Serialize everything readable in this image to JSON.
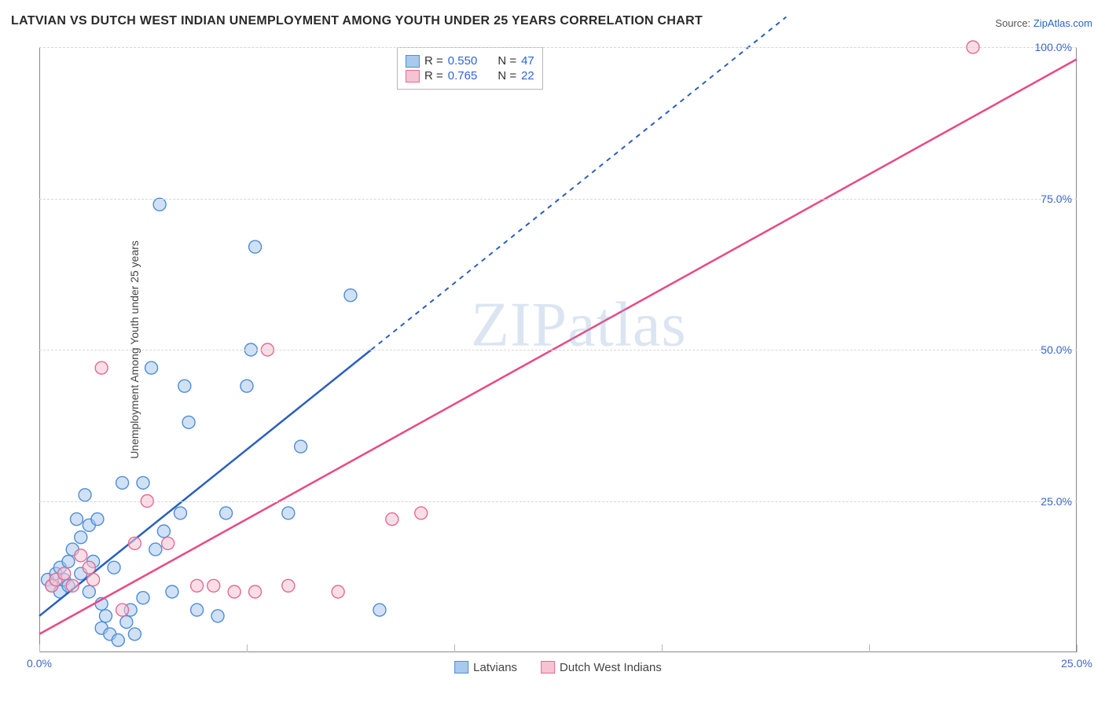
{
  "title": "LATVIAN VS DUTCH WEST INDIAN UNEMPLOYMENT AMONG YOUTH UNDER 25 YEARS CORRELATION CHART",
  "source_label": "Source:",
  "source_name": "ZipAtlas.com",
  "ylabel": "Unemployment Among Youth under 25 years",
  "watermark_part1": "ZIP",
  "watermark_part2": "atlas",
  "chart": {
    "type": "scatter",
    "background": "#ffffff",
    "grid_color": "#d6d6d6",
    "axis_color": "#888888",
    "tick_color": "#3a67c9",
    "xlim": [
      0,
      25
    ],
    "ylim": [
      0,
      100
    ],
    "x_ticks": [
      0,
      5,
      10,
      15,
      20,
      25
    ],
    "x_tick_labels": [
      "0.0%",
      "",
      "",
      "",
      "",
      "25.0%"
    ],
    "y_ticks": [
      25,
      50,
      75,
      100
    ],
    "y_tick_labels": [
      "25.0%",
      "50.0%",
      "75.0%",
      "100.0%"
    ],
    "marker_radius": 8,
    "marker_opacity": 0.55,
    "line_width_solid": 2.5,
    "line_width_dashed": 2,
    "series": [
      {
        "key": "latvians",
        "label": "Latvians",
        "fill": "#a9c9ee",
        "stroke": "#4f8dd6",
        "line_color": "#2a5fc0",
        "R": "0.550",
        "N": "47",
        "trend": {
          "slope": 5.5,
          "intercept": 6,
          "x_solid_max": 8,
          "x_dash_max": 18
        },
        "points": [
          [
            0.2,
            12
          ],
          [
            0.3,
            11
          ],
          [
            0.4,
            13
          ],
          [
            0.5,
            10
          ],
          [
            0.5,
            14
          ],
          [
            0.6,
            12
          ],
          [
            0.7,
            15
          ],
          [
            0.7,
            11
          ],
          [
            0.8,
            17
          ],
          [
            0.9,
            22
          ],
          [
            1.0,
            13
          ],
          [
            1.0,
            19
          ],
          [
            1.1,
            26
          ],
          [
            1.2,
            10
          ],
          [
            1.2,
            21
          ],
          [
            1.3,
            15
          ],
          [
            1.4,
            22
          ],
          [
            1.5,
            4
          ],
          [
            1.5,
            8
          ],
          [
            1.6,
            6
          ],
          [
            1.7,
            3
          ],
          [
            1.8,
            14
          ],
          [
            1.9,
            2
          ],
          [
            2.0,
            28
          ],
          [
            2.1,
            5
          ],
          [
            2.2,
            7
          ],
          [
            2.3,
            3
          ],
          [
            2.5,
            28
          ],
          [
            2.5,
            9
          ],
          [
            2.7,
            47
          ],
          [
            2.8,
            17
          ],
          [
            2.9,
            74
          ],
          [
            3.0,
            20
          ],
          [
            3.2,
            10
          ],
          [
            3.4,
            23
          ],
          [
            3.5,
            44
          ],
          [
            3.6,
            38
          ],
          [
            3.8,
            7
          ],
          [
            4.3,
            6
          ],
          [
            4.5,
            23
          ],
          [
            5.0,
            44
          ],
          [
            5.2,
            67
          ],
          [
            5.1,
            50
          ],
          [
            6.0,
            23
          ],
          [
            6.3,
            34
          ],
          [
            7.5,
            59
          ],
          [
            8.2,
            7
          ]
        ]
      },
      {
        "key": "dutch",
        "label": "Dutch West Indians",
        "fill": "#f6c3d2",
        "stroke": "#e56a93",
        "line_color": "#e84a84",
        "R": "0.765",
        "N": "22",
        "trend": {
          "slope": 3.8,
          "intercept": 3,
          "x_solid_max": 25,
          "x_dash_max": 25
        },
        "points": [
          [
            0.3,
            11
          ],
          [
            0.4,
            12
          ],
          [
            0.6,
            13
          ],
          [
            0.8,
            11
          ],
          [
            1.0,
            16
          ],
          [
            1.2,
            14
          ],
          [
            1.3,
            12
          ],
          [
            1.5,
            47
          ],
          [
            2.0,
            7
          ],
          [
            2.3,
            18
          ],
          [
            2.6,
            25
          ],
          [
            3.1,
            18
          ],
          [
            3.8,
            11
          ],
          [
            4.2,
            11
          ],
          [
            4.7,
            10
          ],
          [
            5.2,
            10
          ],
          [
            5.5,
            50
          ],
          [
            6.0,
            11
          ],
          [
            7.2,
            10
          ],
          [
            8.5,
            22
          ],
          [
            9.2,
            23
          ],
          [
            22.5,
            100
          ]
        ]
      }
    ],
    "stats_legend": {
      "r_label": "R =",
      "n_label": "N ="
    }
  }
}
